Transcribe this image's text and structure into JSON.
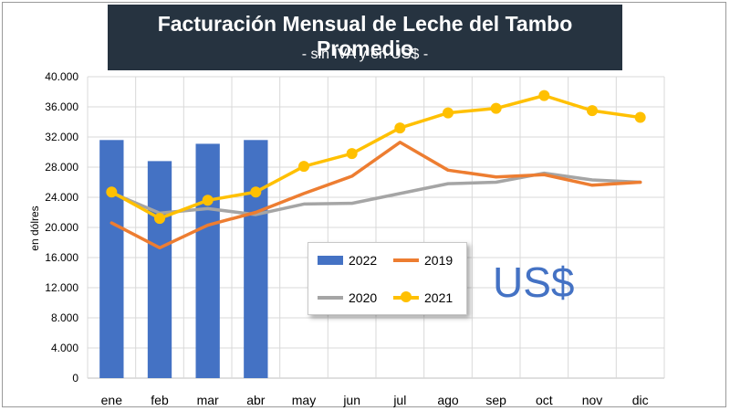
{
  "header": {
    "title": "Facturación Mensual de Leche del Tambo Promedio",
    "subtitle": "- sin IVA y en US$ -"
  },
  "watermark": "US$",
  "colors": {
    "bar2022": "#4472c4",
    "line2019": "#ed7d31",
    "line2020": "#a5a5a5",
    "line2021": "#ffc000"
  },
  "chart_data": {
    "type": "bar+line",
    "ylabel": "en dólres",
    "xlabel": "",
    "ylim": [
      0,
      40000
    ],
    "yticks": [
      0,
      4000,
      8000,
      12000,
      16000,
      20000,
      24000,
      28000,
      32000,
      36000,
      40000
    ],
    "ytick_labels": [
      "0",
      "4.000",
      "8.000",
      "12.000",
      "16.000",
      "20.000",
      "24.000",
      "28.000",
      "32.000",
      "36.000",
      "40.000"
    ],
    "categories": [
      "ene",
      "feb",
      "mar",
      "abr",
      "may",
      "jun",
      "jul",
      "ago",
      "sep",
      "oct",
      "nov",
      "dic"
    ],
    "series": [
      {
        "name": "2022",
        "kind": "bar",
        "values": [
          31600,
          28800,
          31100,
          31600,
          null,
          null,
          null,
          null,
          null,
          null,
          null,
          null
        ]
      },
      {
        "name": "2019",
        "kind": "line",
        "values": [
          20600,
          17300,
          20300,
          22000,
          24500,
          26800,
          31300,
          27600,
          26700,
          27000,
          25600,
          26000
        ]
      },
      {
        "name": "2020",
        "kind": "line",
        "values": [
          24600,
          21900,
          22500,
          21700,
          23100,
          23200,
          24500,
          25800,
          26000,
          27200,
          26300,
          26000
        ]
      },
      {
        "name": "2021",
        "kind": "line-marker",
        "values": [
          24700,
          21200,
          23600,
          24700,
          28100,
          29800,
          33200,
          35200,
          35800,
          37500,
          35500,
          34600
        ]
      }
    ],
    "legend": [
      "2022",
      "2019",
      "2020",
      "2021"
    ],
    "grid": true
  }
}
